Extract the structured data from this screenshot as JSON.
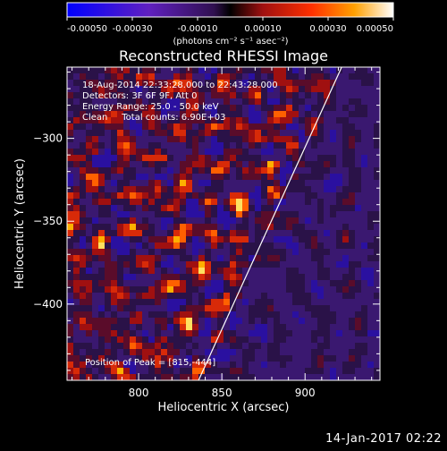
{
  "chart_data": {
    "type": "heatmap",
    "title": "Reconstructed RHESSI Image",
    "xlabel": "Heliocentric X (arcsec)",
    "ylabel": "Heliocentric Y (arcsec)",
    "x_ticks": [
      800,
      850,
      900
    ],
    "y_ticks": [
      -300,
      -350,
      -400
    ],
    "xlim": [
      757,
      945
    ],
    "ylim": [
      -446,
      -257
    ],
    "colorbar": {
      "ticks": [
        "-0.00050",
        "-0.00030",
        "-0.00010",
        "0.00010",
        "0.00030",
        "0.00050"
      ],
      "unit_label": "(photons cm⁻² s⁻¹ asec⁻²)",
      "range": [
        -0.0005,
        0.0005
      ]
    },
    "info_lines": [
      "18-Aug-2014 22:33:28.000 to 22:43:28.000",
      "Detectors: 3F 6F 9F, Att 0",
      "Energy Range: 25.0 - 50.0 keV",
      "Clean     Total counts: 6.90E+03"
    ],
    "peak_label": "Position of Peak = [815,-444]",
    "peak": [
      815,
      -444
    ],
    "limb_line": {
      "x1": 836,
      "y1": -446,
      "x2": 922,
      "y2": -257
    },
    "grid": "off"
  },
  "timestamp": "14-Jan-2017 02:22",
  "colors": {
    "background": "#000000",
    "limb": "#ffffff"
  }
}
